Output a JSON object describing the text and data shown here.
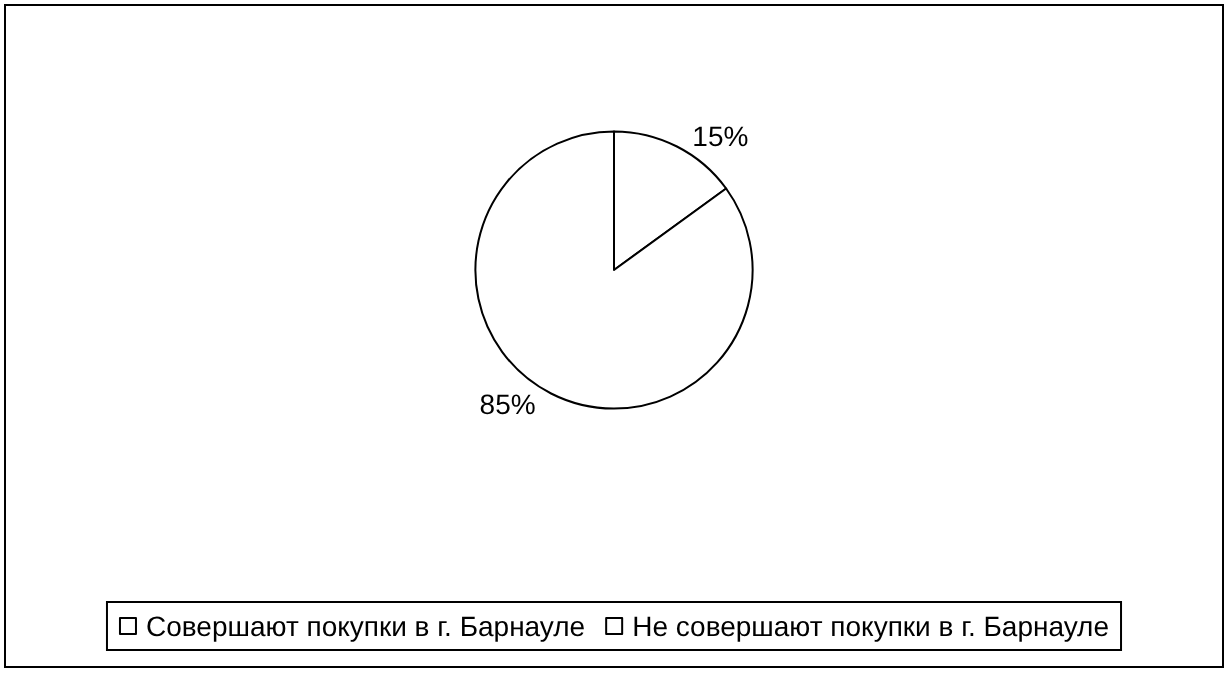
{
  "chart_data": {
    "type": "pie",
    "categories": [
      "Совершают покупки в г. Барнауле",
      "Не совершают покупки в г. Барнауле"
    ],
    "values": [
      15,
      85
    ],
    "colors": [
      "#ffffff",
      "#ffffff"
    ],
    "value_labels": [
      "15%",
      "85%"
    ],
    "legend": "bottom"
  }
}
